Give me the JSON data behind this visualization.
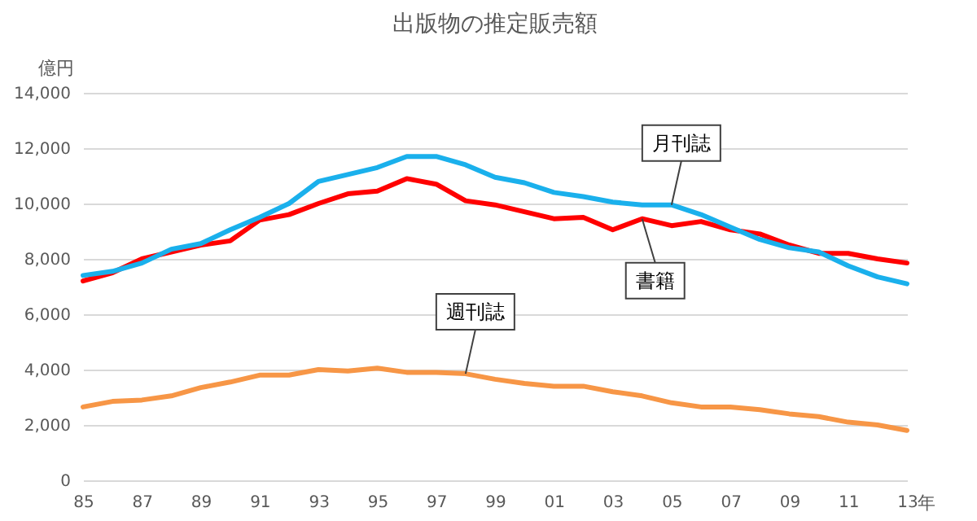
{
  "chart_data": {
    "type": "line",
    "title": "出版物の推定販売額",
    "xlabel": "年",
    "ylabel": "億円",
    "x": [
      1985,
      1986,
      1987,
      1988,
      1989,
      1990,
      1991,
      1992,
      1993,
      1994,
      1995,
      1996,
      1997,
      1998,
      1999,
      2000,
      2001,
      2002,
      2003,
      2004,
      2005,
      2006,
      2007,
      2008,
      2009,
      2010,
      2011,
      2012,
      2013
    ],
    "series": [
      {
        "color": "#ff0000",
        "values": [
          7200,
          7500,
          8000,
          8250,
          8500,
          8650,
          9400,
          9600,
          10000,
          10350,
          10450,
          10900,
          10700,
          10100,
          9950,
          9700,
          9450,
          9500,
          9050,
          9450,
          9200,
          9350,
          9050,
          8900,
          8500,
          8200,
          8200,
          8000,
          7850
        ]
      },
      {
        "color": "#1ab0ec",
        "values": [
          7400,
          7550,
          7850,
          8350,
          8550,
          9050,
          9500,
          10000,
          10800,
          11050,
          11300,
          11700,
          11700,
          11400,
          10950,
          10750,
          10400,
          10250,
          10050,
          9950,
          9950,
          9600,
          9150,
          8700,
          8400,
          8250,
          7750,
          7350,
          7100
        ]
      },
      {
        "color": "#f79646",
        "values": [
          2650,
          2850,
          2900,
          3050,
          3350,
          3550,
          3800,
          3800,
          4000,
          3950,
          4050,
          3900,
          3900,
          3850,
          3650,
          3500,
          3400,
          3400,
          3200,
          3050,
          2800,
          2650,
          2650,
          2550,
          2400,
          2300,
          2100,
          2000,
          1800
        ]
      }
    ],
    "annotations": [
      {
        "text": "月刊誌",
        "x": 2005,
        "y": 9950
      },
      {
        "text": "書籍",
        "x": 2004,
        "y": 9450
      },
      {
        "text": "週刊誌",
        "x": 1998,
        "y": 3850
      }
    ],
    "xlim": [
      1985,
      2013
    ],
    "xticks": [
      {
        "value": 1985,
        "label": "85"
      },
      {
        "value": 1987,
        "label": "87"
      },
      {
        "value": 1989,
        "label": "89"
      },
      {
        "value": 1991,
        "label": "91"
      },
      {
        "value": 1993,
        "label": "93"
      },
      {
        "value": 1995,
        "label": "95"
      },
      {
        "value": 1997,
        "label": "97"
      },
      {
        "value": 1999,
        "label": "99"
      },
      {
        "value": 2001,
        "label": "01"
      },
      {
        "value": 2003,
        "label": "03"
      },
      {
        "value": 2005,
        "label": "05"
      },
      {
        "value": 2007,
        "label": "07"
      },
      {
        "value": 2009,
        "label": "09"
      },
      {
        "value": 2011,
        "label": "11"
      },
      {
        "value": 2013,
        "label": "13"
      }
    ],
    "ylim": [
      0,
      14000
    ],
    "yticks": [
      0,
      {
        "value": 2000,
        "label": "2,000"
      },
      {
        "value": 4000,
        "label": "4,000"
      },
      {
        "value": 6000,
        "label": "6,000"
      },
      {
        "value": 8000,
        "label": "8,000"
      },
      {
        "value": 10000,
        "label": "10,000"
      },
      {
        "value": 12000,
        "label": "12,000"
      },
      {
        "value": 14000,
        "label": "14,000"
      }
    ],
    "grid": "y",
    "legend": false,
    "marker": "none",
    "line_style": "solid"
  }
}
